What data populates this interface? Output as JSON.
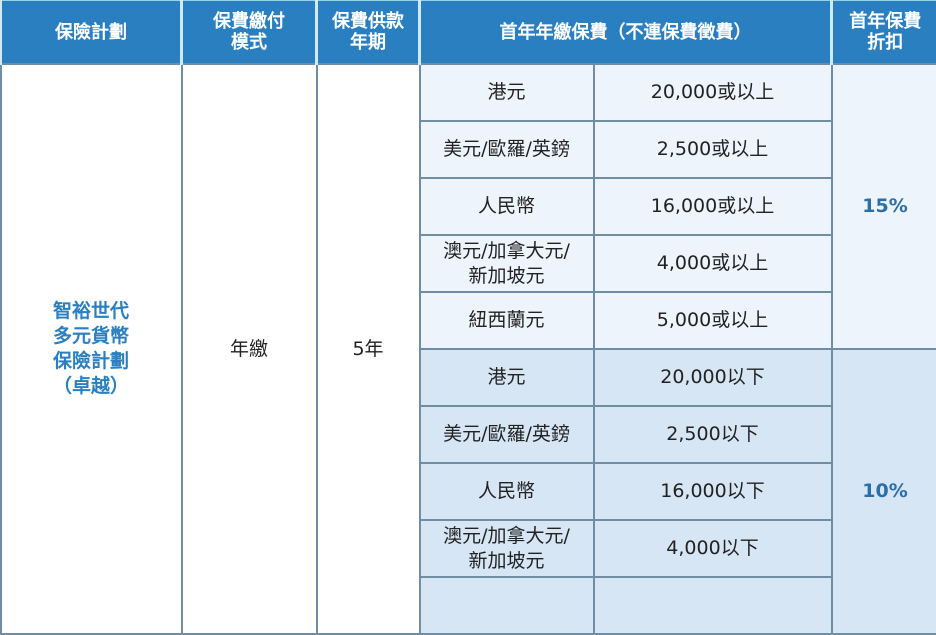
{
  "headers": [
    "保險計劃",
    "保費繳付\n模式",
    "保費供款\n年期",
    "首年年繳保費（不連保費徵費）",
    "首年保費\n折扣"
  ],
  "plan_name": [
    "智裕世代",
    "多元貨幣",
    "保險計劃",
    "（卓越）"
  ],
  "payment_mode": "年繳",
  "payment_term": "5年",
  "groups": [
    {
      "discount": "15%",
      "rows": [
        {
          "currency": [
            "港元"
          ],
          "premium": "20,000或以上"
        },
        {
          "currency": [
            "美元/歐羅/英鎊"
          ],
          "premium": "2,500或以上"
        },
        {
          "currency": [
            "人民幣"
          ],
          "premium": "16,000或以上"
        },
        {
          "currency": [
            "澳元/加拿大元/",
            "新加坡元"
          ],
          "premium": "4,000或以上"
        },
        {
          "currency": [
            "紐西蘭元"
          ],
          "premium": "5,000或以上"
        }
      ]
    },
    {
      "discount": "10%",
      "rows": [
        {
          "currency": [
            "港元"
          ],
          "premium": "20,000以下"
        },
        {
          "currency": [
            "美元/歐羅/英鎊"
          ],
          "premium": "2,500以下"
        },
        {
          "currency": [
            "人民幣"
          ],
          "premium": "16,000以下"
        },
        {
          "currency": [
            "澳元/加拿大元/",
            "新加坡元"
          ],
          "premium": "4,000以下"
        }
      ]
    }
  ],
  "colors": {
    "header": "#2a7fc0",
    "group1": "#eef4fb",
    "group2": "#d6e6f4",
    "plan_text": "#2a7fc0"
  }
}
